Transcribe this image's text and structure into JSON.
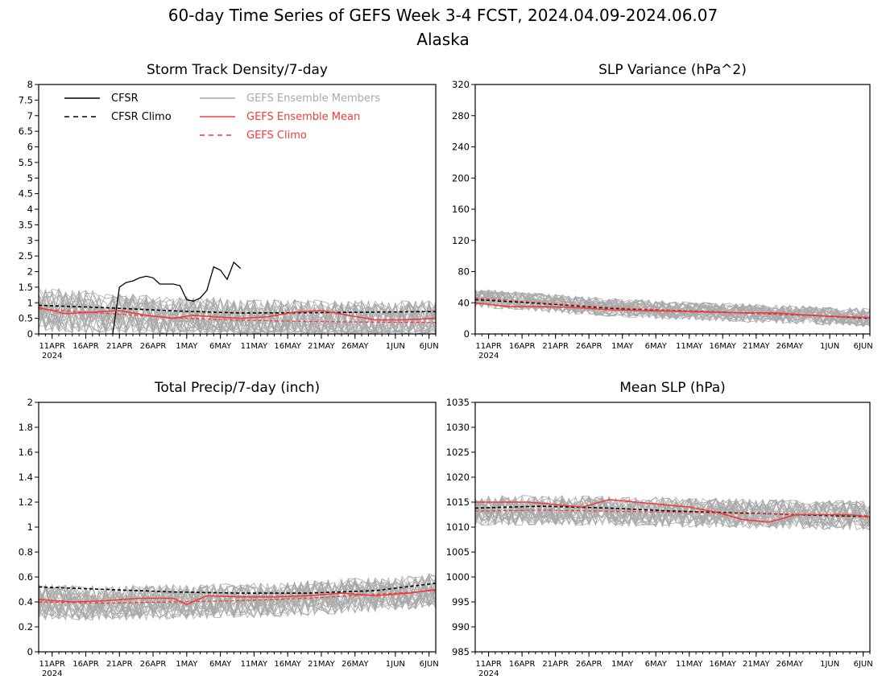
{
  "figure": {
    "title_line1": "60-day Time Series of GEFS Week 3-4 FCST, 2024.04.09-2024.06.07",
    "title_line2": "Alaska"
  },
  "colors": {
    "cfsr": "#000000",
    "members": "#a9a9a9",
    "ens_mean": "#f03c3c",
    "gefs_climo": "#f03c3c"
  },
  "legend": {
    "cfsr": "CFSR",
    "cfsr_climo": "CFSR Climo",
    "members": "GEFS Ensemble Members",
    "ens_mean": "GEFS Ensemble Mean",
    "gefs_climo": "GEFS Climo"
  },
  "x_axis": {
    "tick_labels": [
      "11APR",
      "16APR",
      "21APR",
      "26APR",
      "1MAY",
      "6MAY",
      "11MAY",
      "16MAY",
      "21MAY",
      "26MAY",
      "1JUN",
      "6JUN"
    ],
    "tick_days": [
      2,
      7,
      12,
      17,
      22,
      27,
      32,
      37,
      42,
      47,
      53,
      58
    ],
    "year_label": "2024",
    "days": 60,
    "start_date": "2024-04-09",
    "end_date": "2024-06-07"
  },
  "chart_data": [
    {
      "type": "line",
      "title": "Storm Track Density/7-day",
      "ylim": [
        0,
        8
      ],
      "yticks": [
        "0",
        "0.5",
        "1",
        "1.5",
        "2",
        "2.5",
        "3",
        "3.5",
        "4",
        "4.5",
        "5",
        "5.5",
        "6",
        "6.5",
        "7",
        "7.5",
        "8"
      ],
      "show_legend": true,
      "members": {
        "count": 31,
        "spread": 0.7,
        "mean_level": 0.55
      },
      "series": [
        {
          "name": "CFSR",
          "style": "solid",
          "x": [
            11,
            12,
            13,
            14,
            15,
            16,
            17,
            18,
            19,
            20,
            21,
            22,
            23,
            24,
            25,
            26,
            27,
            28,
            29,
            30
          ],
          "values": [
            0,
            1.5,
            1.65,
            1.7,
            1.8,
            1.85,
            1.8,
            1.6,
            1.6,
            1.6,
            1.55,
            1.1,
            1.05,
            1.15,
            1.4,
            2.15,
            2.05,
            1.75,
            2.3,
            2.1
          ]
        },
        {
          "name": "CFSR Climo",
          "style": "dashed",
          "x": [
            0,
            10,
            20,
            30,
            40,
            50,
            59
          ],
          "values": [
            0.92,
            0.84,
            0.74,
            0.67,
            0.68,
            0.7,
            0.72
          ]
        },
        {
          "name": "GEFS Ensemble Mean",
          "style": "solid",
          "x": [
            0,
            4,
            8,
            12,
            16,
            20,
            23,
            26,
            30,
            34,
            38,
            42,
            46,
            50,
            54,
            59
          ],
          "values": [
            0.85,
            0.65,
            0.7,
            0.75,
            0.6,
            0.5,
            0.6,
            0.55,
            0.5,
            0.55,
            0.7,
            0.75,
            0.6,
            0.45,
            0.45,
            0.5
          ]
        },
        {
          "name": "GEFS Climo",
          "style": "dashed",
          "x": [
            0,
            10,
            20,
            30,
            40,
            50,
            59
          ],
          "values": [
            0.8,
            0.66,
            0.52,
            0.44,
            0.4,
            0.38,
            0.37
          ]
        }
      ]
    },
    {
      "type": "line",
      "title": "SLP Variance (hPa^2)",
      "ylim": [
        0,
        320
      ],
      "yticks": [
        "0",
        "40",
        "80",
        "120",
        "160",
        "200",
        "240",
        "280",
        "320"
      ],
      "show_legend": false,
      "members": {
        "count": 31,
        "spread": 12,
        "mean_level": 30
      },
      "series": [
        {
          "name": "CFSR Climo",
          "style": "dashed",
          "x": [
            0,
            10,
            20,
            30,
            40,
            50,
            59
          ],
          "values": [
            44,
            39,
            33,
            30,
            27,
            24,
            20
          ]
        },
        {
          "name": "GEFS Ensemble Mean",
          "style": "solid",
          "x": [
            0,
            5,
            10,
            15,
            20,
            25,
            30,
            35,
            40,
            45,
            50,
            55,
            59
          ],
          "values": [
            40,
            35,
            35,
            34,
            31,
            30,
            29,
            28,
            27,
            27,
            24,
            22,
            21
          ]
        },
        {
          "name": "GEFS Climo",
          "style": "dashed",
          "x": [
            0,
            10,
            20,
            30,
            40,
            50,
            59
          ],
          "values": [
            46,
            40,
            34,
            30,
            27,
            24,
            21
          ]
        }
      ]
    },
    {
      "type": "line",
      "title": "Total Precip/7-day (inch)",
      "ylim": [
        0,
        2
      ],
      "yticks": [
        "0",
        "0.2",
        "0.4",
        "0.6",
        "0.8",
        "1",
        "1.2",
        "1.4",
        "1.6",
        "1.8",
        "2"
      ],
      "show_legend": false,
      "members": {
        "count": 31,
        "spread": 0.14,
        "mean_level": 0.43
      },
      "series": [
        {
          "name": "CFSR Climo",
          "style": "dashed",
          "x": [
            0,
            10,
            20,
            30,
            40,
            50,
            59
          ],
          "values": [
            0.52,
            0.5,
            0.48,
            0.47,
            0.47,
            0.49,
            0.55
          ]
        },
        {
          "name": "GEFS Ensemble Mean",
          "style": "solid",
          "x": [
            0,
            5,
            10,
            15,
            20,
            22,
            25,
            30,
            35,
            40,
            45,
            50,
            55,
            59
          ],
          "values": [
            0.42,
            0.4,
            0.41,
            0.43,
            0.43,
            0.38,
            0.45,
            0.44,
            0.44,
            0.45,
            0.47,
            0.45,
            0.47,
            0.5
          ]
        },
        {
          "name": "GEFS Climo",
          "style": "dashed",
          "x": [
            0,
            10,
            20,
            30,
            40,
            50,
            59
          ],
          "values": [
            0.4,
            0.39,
            0.4,
            0.41,
            0.43,
            0.46,
            0.49
          ]
        }
      ]
    },
    {
      "type": "line",
      "title": "Mean SLP (hPa)",
      "ylim": [
        985,
        1035
      ],
      "yticks": [
        "985",
        "990",
        "995",
        "1000",
        "1005",
        "1010",
        "1015",
        "1020",
        "1025",
        "1030",
        "1035"
      ],
      "show_legend": false,
      "members": {
        "count": 31,
        "spread": 3,
        "mean_level": 1013.5
      },
      "series": [
        {
          "name": "CFSR Climo",
          "style": "dashed",
          "x": [
            0,
            10,
            20,
            30,
            40,
            50,
            59
          ],
          "values": [
            1013.8,
            1014.2,
            1013.8,
            1013.2,
            1012.8,
            1012.4,
            1012.1
          ]
        },
        {
          "name": "GEFS Ensemble Mean",
          "style": "solid",
          "x": [
            0,
            4,
            8,
            12,
            16,
            20,
            24,
            28,
            32,
            36,
            40,
            44,
            48,
            52,
            56,
            59
          ],
          "values": [
            1015,
            1015,
            1015,
            1014.5,
            1014,
            1015.5,
            1015,
            1014.5,
            1014,
            1013,
            1011.5,
            1011,
            1012.5,
            1012.5,
            1012.5,
            1012
          ]
        },
        {
          "name": "GEFS Climo",
          "style": "dashed",
          "x": [
            0,
            10,
            20,
            30,
            40,
            50,
            59
          ],
          "values": [
            1013.2,
            1013.4,
            1013.2,
            1013,
            1012.7,
            1012.5,
            1012.3
          ]
        }
      ]
    }
  ]
}
